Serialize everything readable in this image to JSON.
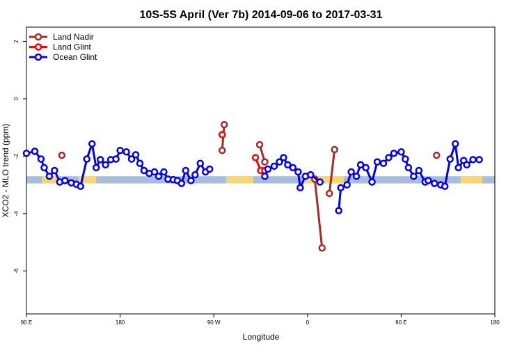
{
  "chart_data": {
    "type": "line",
    "title": "10S-5S April (Ver 7b)   2014-09-06 to 2017-03-31",
    "xlabel": "Longitude",
    "ylabel": "XCO2 - MLO trend (ppm)",
    "xlim": [
      -180,
      270
    ],
    "ylim": [
      -7.5,
      2.5
    ],
    "x_ticks": [
      {
        "value": -180,
        "label": "90 E"
      },
      {
        "value": -90,
        "label": "180"
      },
      {
        "value": 0,
        "label": "90 W"
      },
      {
        "value": 90,
        "label": "0"
      },
      {
        "value": 180,
        "label": "90 E"
      },
      {
        "value": 270,
        "label": "180"
      }
    ],
    "y_ticks": [
      {
        "value": 2,
        "label": "2"
      },
      {
        "value": 0,
        "label": "0"
      },
      {
        "value": -2,
        "label": "-2"
      },
      {
        "value": -4,
        "label": "-4"
      },
      {
        "value": -6,
        "label": "-6"
      }
    ],
    "legend_position": "top-left",
    "surface_band": {
      "y_range": [
        -2.95,
        -2.7
      ],
      "ocean_color": "#a6bddb",
      "land_color": "#f7d774",
      "land_segments": [
        [
          -165,
          -150
        ],
        [
          -130,
          -113
        ],
        [
          12,
          38
        ],
        [
          85,
          125
        ],
        [
          237,
          258
        ]
      ]
    },
    "series": [
      {
        "name": "Land Nadir",
        "color": "#a52a2a",
        "segments": [
          [
            [
              -146,
              -1.97
            ]
          ],
          [
            [
              8,
              -1.8
            ],
            [
              10,
              -0.9
            ]
          ],
          [
            [
              44,
              -1.6
            ],
            [
              49,
              -2.2
            ]
          ],
          [
            [
              97,
              -2.8
            ],
            [
              104,
              -5.2
            ]
          ],
          [
            [
              111,
              -3.3
            ],
            [
              116,
              -1.77
            ]
          ],
          [
            [
              214,
              -1.97
            ]
          ]
        ]
      },
      {
        "name": "Land Glint",
        "color": "#ff0000",
        "segments": [
          [
            [
              8,
              -1.25
            ]
          ],
          [
            [
              40,
              -2.05
            ],
            [
              45,
              -2.5
            ],
            [
              49,
              -2.5
            ]
          ]
        ]
      },
      {
        "name": "Ocean Glint",
        "color": "#0000ee",
        "segments": [
          [
            [
              -180,
              -1.9
            ],
            [
              -172,
              -1.83
            ],
            [
              -166,
              -2.1
            ],
            [
              -163,
              -2.4
            ],
            [
              -158,
              -2.7
            ],
            [
              -153,
              -2.5
            ],
            [
              -148,
              -2.9
            ],
            [
              -143,
              -2.85
            ],
            [
              -137,
              -2.93
            ],
            [
              -132,
              -2.98
            ],
            [
              -128,
              -3.05
            ],
            [
              -122,
              -2.1
            ],
            [
              -117,
              -1.57
            ],
            [
              -113,
              -2.4
            ],
            [
              -109,
              -2.12
            ],
            [
              -104,
              -2.3
            ],
            [
              -99,
              -2.12
            ],
            [
              -94,
              -2.1
            ],
            [
              -90,
              -1.8
            ],
            [
              -84,
              -1.85
            ],
            [
              -79,
              -2.1
            ],
            [
              -75,
              -1.95
            ],
            [
              -71,
              -2.25
            ],
            [
              -67,
              -2.5
            ],
            [
              -62,
              -2.6
            ],
            [
              -57,
              -2.55
            ],
            [
              -53,
              -2.7
            ],
            [
              -48,
              -2.55
            ],
            [
              -44,
              -2.8
            ],
            [
              -39,
              -2.82
            ],
            [
              -35,
              -2.85
            ],
            [
              -31,
              -2.95
            ],
            [
              -27,
              -2.5
            ],
            [
              -22,
              -2.85
            ],
            [
              -18,
              -2.65
            ],
            [
              -13,
              -2.25
            ],
            [
              -8,
              -2.55
            ],
            [
              -4,
              -2.45
            ]
          ],
          [
            [
              49,
              -2.7
            ],
            [
              52,
              -2.45
            ],
            [
              58,
              -2.35
            ],
            [
              63,
              -2.2
            ],
            [
              67,
              -2.05
            ],
            [
              71,
              -2.3
            ],
            [
              76,
              -2.4
            ],
            [
              81,
              -2.55
            ],
            [
              83,
              -3.1
            ],
            [
              88,
              -2.7
            ],
            [
              93,
              -2.65
            ],
            [
              102,
              -2.9
            ]
          ],
          [
            [
              120,
              -3.9
            ],
            [
              122,
              -3.1
            ],
            [
              128,
              -3.0
            ],
            [
              132,
              -2.55
            ],
            [
              137,
              -2.7
            ],
            [
              141,
              -2.3
            ],
            [
              146,
              -2.4
            ],
            [
              152,
              -2.9
            ],
            [
              157,
              -2.2
            ],
            [
              163,
              -2.25
            ],
            [
              168,
              -2.05
            ],
            [
              173,
              -1.9
            ],
            [
              180,
              -1.85
            ],
            [
              184,
              -2.1
            ],
            [
              187,
              -2.4
            ],
            [
              192,
              -2.7
            ],
            [
              197,
              -2.5
            ],
            [
              203,
              -2.9
            ],
            [
              206,
              -2.85
            ],
            [
              212,
              -2.95
            ],
            [
              218,
              -3.0
            ],
            [
              222,
              -3.05
            ],
            [
              227,
              -2.1
            ],
            [
              232,
              -1.57
            ],
            [
              235,
              -2.4
            ],
            [
              240,
              -2.15
            ],
            [
              243,
              -2.3
            ],
            [
              249,
              -2.12
            ],
            [
              255,
              -2.12
            ]
          ]
        ]
      }
    ]
  }
}
